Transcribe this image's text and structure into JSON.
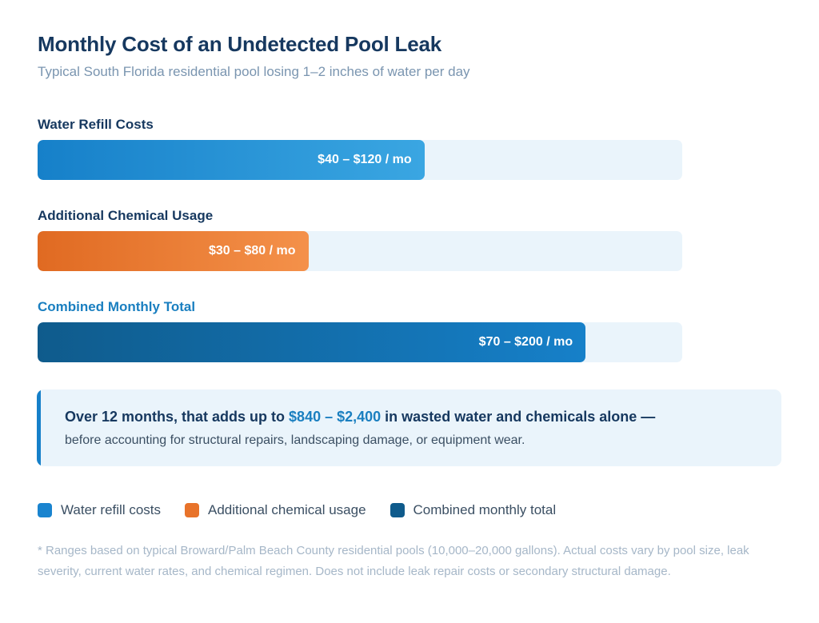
{
  "header": {
    "title": "Monthly Cost of an Undetected Pool Leak",
    "subtitle": "Typical South Florida residential pool losing 1–2 inches of water per day"
  },
  "chart_data": {
    "type": "bar",
    "orientation": "horizontal",
    "title": "Monthly Cost of an Undetected Pool Leak",
    "subtitle": "Typical South Florida residential pool losing 1–2 inches of water per day",
    "bars": [
      {
        "key": "water",
        "label": "Water Refill Costs",
        "value_label": "$40 – $120 / mo",
        "min": 40,
        "max": 120,
        "fill_fraction": 0.6,
        "color": "#1680c9"
      },
      {
        "key": "chem",
        "label": "Additional Chemical Usage",
        "value_label": "$30 – $80 / mo",
        "min": 30,
        "max": 80,
        "fill_fraction": 0.42,
        "color": "#e8732a"
      },
      {
        "key": "total",
        "label": "Combined Monthly Total",
        "value_label": "$70 – $200 / mo",
        "min": 70,
        "max": 200,
        "fill_fraction": 0.85,
        "color": "#0f5b8c"
      }
    ]
  },
  "callout": {
    "line1_pre": "Over 12 months, that adds up to ",
    "line1_highlight": "$840 – $2,400",
    "line1_post": " in wasted water and chemicals alone —",
    "line2": "before accounting for structural repairs, landscaping damage, or equipment wear."
  },
  "legend": [
    {
      "label": "Water refill costs",
      "color": "#1a84cf"
    },
    {
      "label": "Additional chemical usage",
      "color": "#e8732a"
    },
    {
      "label": "Combined monthly total",
      "color": "#0f5b8c"
    }
  ],
  "footnote": "* Ranges based on typical Broward/Palm Beach County residential pools (10,000–20,000 gallons). Actual costs vary by pool size, leak severity, current water rates, and chemical regimen. Does not include leak repair costs or secondary structural damage."
}
